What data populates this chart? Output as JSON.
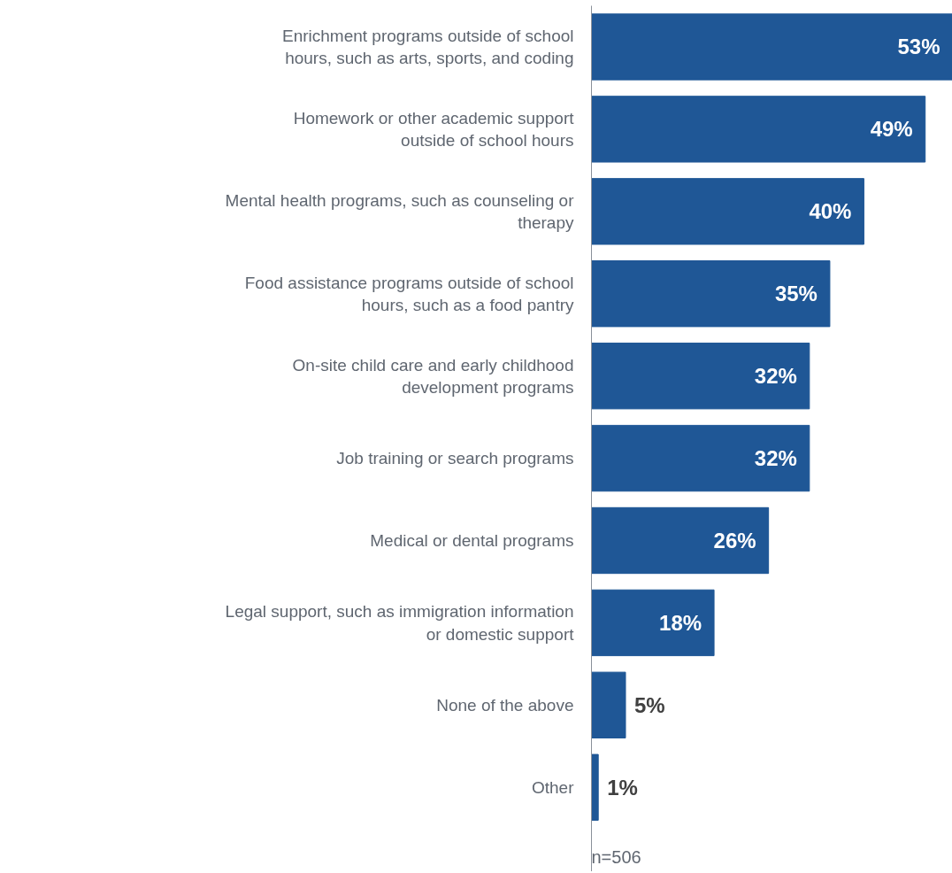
{
  "chart_data": {
    "type": "bar",
    "orientation": "horizontal",
    "categories": [
      "Enrichment programs outside of school\nhours, such as arts, sports, and coding",
      "Homework or other academic support\noutside of school hours",
      "Mental health programs, such as counseling or\ntherapy",
      "Food assistance programs outside of school\nhours, such as a food pantry",
      "On-site child care and early childhood\ndevelopment programs",
      "Job training or search programs",
      "Medical or dental programs",
      "Legal support, such as immigration information\nor domestic support",
      "None of the above",
      "Other"
    ],
    "values": [
      53,
      49,
      40,
      35,
      32,
      32,
      26,
      18,
      5,
      1
    ],
    "value_labels": [
      "53%",
      "49%",
      "40%",
      "35%",
      "32%",
      "32%",
      "26%",
      "18%",
      "5%",
      "1%"
    ],
    "color": "#1f5796",
    "xlim": [
      0,
      53
    ],
    "tick_labels": "y",
    "grid": false,
    "annotations": [
      "n=506"
    ]
  }
}
